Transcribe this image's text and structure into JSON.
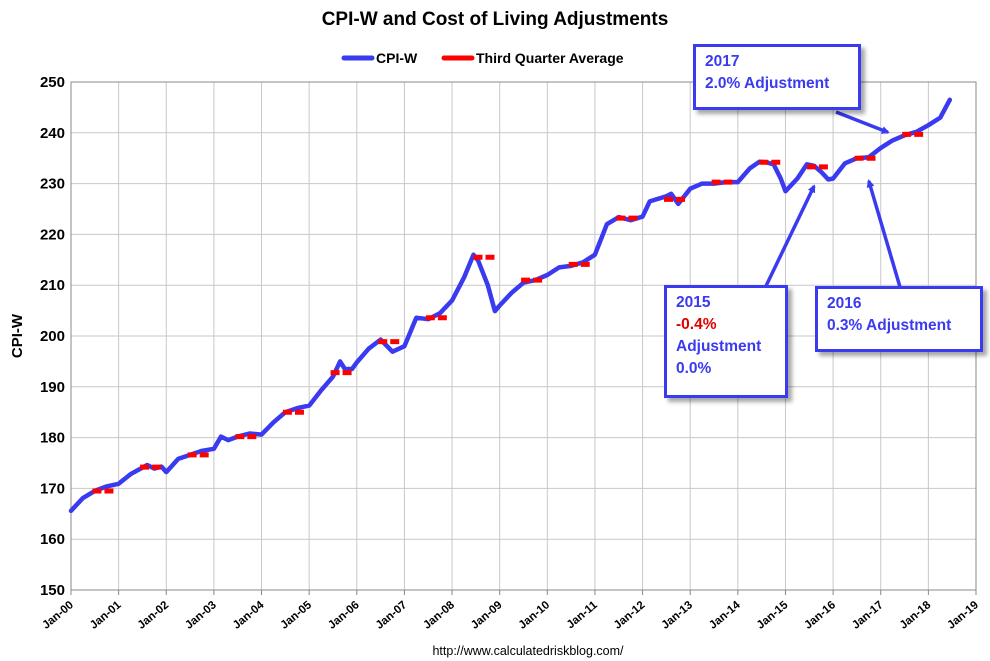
{
  "chart_data": {
    "type": "line",
    "title": "CPI-W and Cost of Living Adjustments",
    "ylabel": "CPI-W",
    "xlabel": "",
    "ylim": [
      150,
      250
    ],
    "yticks": [
      150,
      160,
      170,
      180,
      190,
      200,
      210,
      220,
      230,
      240,
      250
    ],
    "xlim": [
      2000,
      2019
    ],
    "xtick_labels": [
      "Jan-00",
      "Jan-01",
      "Jan-02",
      "Jan-03",
      "Jan-04",
      "Jan-05",
      "Jan-06",
      "Jan-07",
      "Jan-08",
      "Jan-09",
      "Jan-10",
      "Jan-11",
      "Jan-12",
      "Jan-13",
      "Jan-14",
      "Jan-15",
      "Jan-16",
      "Jan-17",
      "Jan-18",
      "Jan-19"
    ],
    "legend": {
      "placement": "top-center",
      "entries": [
        "CPI-W",
        "Third Quarter Average"
      ]
    },
    "grid": true,
    "colors": {
      "cpiw": "#3a3af0",
      "q3avg": "#ff0000",
      "callout": "#3a3af0",
      "negative": "#e00000",
      "grid": "#c8c8c8"
    },
    "series": [
      {
        "name": "CPI-W",
        "x": [
          2000.0,
          2000.25,
          2000.5,
          2000.75,
          2001.0,
          2001.25,
          2001.5,
          2001.6,
          2001.75,
          2001.9,
          2002.0,
          2002.25,
          2002.5,
          2002.75,
          2003.0,
          2003.15,
          2003.3,
          2003.5,
          2003.75,
          2004.0,
          2004.25,
          2004.5,
          2004.75,
          2005.0,
          2005.25,
          2005.5,
          2005.65,
          2005.75,
          2005.9,
          2006.0,
          2006.25,
          2006.5,
          2006.75,
          2007.0,
          2007.25,
          2007.5,
          2007.75,
          2008.0,
          2008.25,
          2008.45,
          2008.55,
          2008.75,
          2008.9,
          2009.0,
          2009.25,
          2009.5,
          2009.75,
          2010.0,
          2010.25,
          2010.5,
          2010.75,
          2011.0,
          2011.25,
          2011.5,
          2011.75,
          2012.0,
          2012.15,
          2012.25,
          2012.5,
          2012.6,
          2012.75,
          2013.0,
          2013.25,
          2013.5,
          2013.75,
          2014.0,
          2014.25,
          2014.45,
          2014.6,
          2014.75,
          2014.9,
          2015.0,
          2015.25,
          2015.45,
          2015.6,
          2015.75,
          2015.9,
          2016.0,
          2016.25,
          2016.5,
          2016.75,
          2017.0,
          2017.25,
          2017.5,
          2017.75,
          2018.0,
          2018.25,
          2018.45
        ],
        "values": [
          165.6,
          168.1,
          169.5,
          170.4,
          170.9,
          172.8,
          174.1,
          174.6,
          173.9,
          174.3,
          173.2,
          175.8,
          176.6,
          177.4,
          177.8,
          180.2,
          179.5,
          180.2,
          180.8,
          180.6,
          183.0,
          185.0,
          185.8,
          186.3,
          189.3,
          192.0,
          195.0,
          193.5,
          193.5,
          194.8,
          197.5,
          199.3,
          196.9,
          198.0,
          203.6,
          203.3,
          204.5,
          207.0,
          211.5,
          216.0,
          214.8,
          210.0,
          204.9,
          206.0,
          208.5,
          210.5,
          211.0,
          212.0,
          213.5,
          213.8,
          214.5,
          216.0,
          222.0,
          223.4,
          222.8,
          223.5,
          226.5,
          226.8,
          227.5,
          228.0,
          226.0,
          229.0,
          230.0,
          230.0,
          230.3,
          230.3,
          233.0,
          234.3,
          234.2,
          233.8,
          231.0,
          228.5,
          231.0,
          233.8,
          233.5,
          232.3,
          230.8,
          231.0,
          234.0,
          235.0,
          235.2,
          237.0,
          238.5,
          239.5,
          240.2,
          241.5,
          243.0,
          246.5
        ]
      },
      {
        "name": "Third Quarter Average",
        "type": "segments",
        "segments": [
          {
            "x0": 2000.45,
            "x1": 2000.95,
            "y": 169.5
          },
          {
            "x0": 2001.45,
            "x1": 2001.95,
            "y": 174.2
          },
          {
            "x0": 2002.45,
            "x1": 2002.95,
            "y": 176.6
          },
          {
            "x0": 2003.45,
            "x1": 2003.95,
            "y": 180.2
          },
          {
            "x0": 2004.45,
            "x1": 2004.95,
            "y": 185.0
          },
          {
            "x0": 2005.45,
            "x1": 2005.95,
            "y": 192.8
          },
          {
            "x0": 2006.45,
            "x1": 2006.95,
            "y": 198.9
          },
          {
            "x0": 2007.45,
            "x1": 2007.95,
            "y": 203.6
          },
          {
            "x0": 2008.45,
            "x1": 2008.95,
            "y": 215.5
          },
          {
            "x0": 2009.45,
            "x1": 2009.95,
            "y": 211.0
          },
          {
            "x0": 2010.45,
            "x1": 2010.95,
            "y": 214.1
          },
          {
            "x0": 2011.45,
            "x1": 2011.95,
            "y": 223.2
          },
          {
            "x0": 2012.45,
            "x1": 2012.95,
            "y": 226.9
          },
          {
            "x0": 2013.45,
            "x1": 2013.95,
            "y": 230.3
          },
          {
            "x0": 2014.45,
            "x1": 2014.95,
            "y": 234.2
          },
          {
            "x0": 2015.45,
            "x1": 2015.95,
            "y": 233.3
          },
          {
            "x0": 2016.45,
            "x1": 2016.95,
            "y": 235.0
          },
          {
            "x0": 2017.45,
            "x1": 2017.95,
            "y": 239.7
          }
        ]
      }
    ],
    "annotations": [
      {
        "lines": [
          "2017",
          "2.0% Adjustment"
        ],
        "arrow_to": [
          2017.15,
          240.1
        ]
      },
      {
        "lines": [
          "2015",
          "-0.4%",
          "Adjustment",
          "0.0%"
        ],
        "arrow_to": [
          2015.6,
          229.5
        ]
      },
      {
        "lines": [
          "2016",
          "0.3% Adjustment"
        ],
        "arrow_to": [
          2016.75,
          230.5
        ]
      }
    ],
    "source": "http://www.calculatedriskblog.com/"
  }
}
